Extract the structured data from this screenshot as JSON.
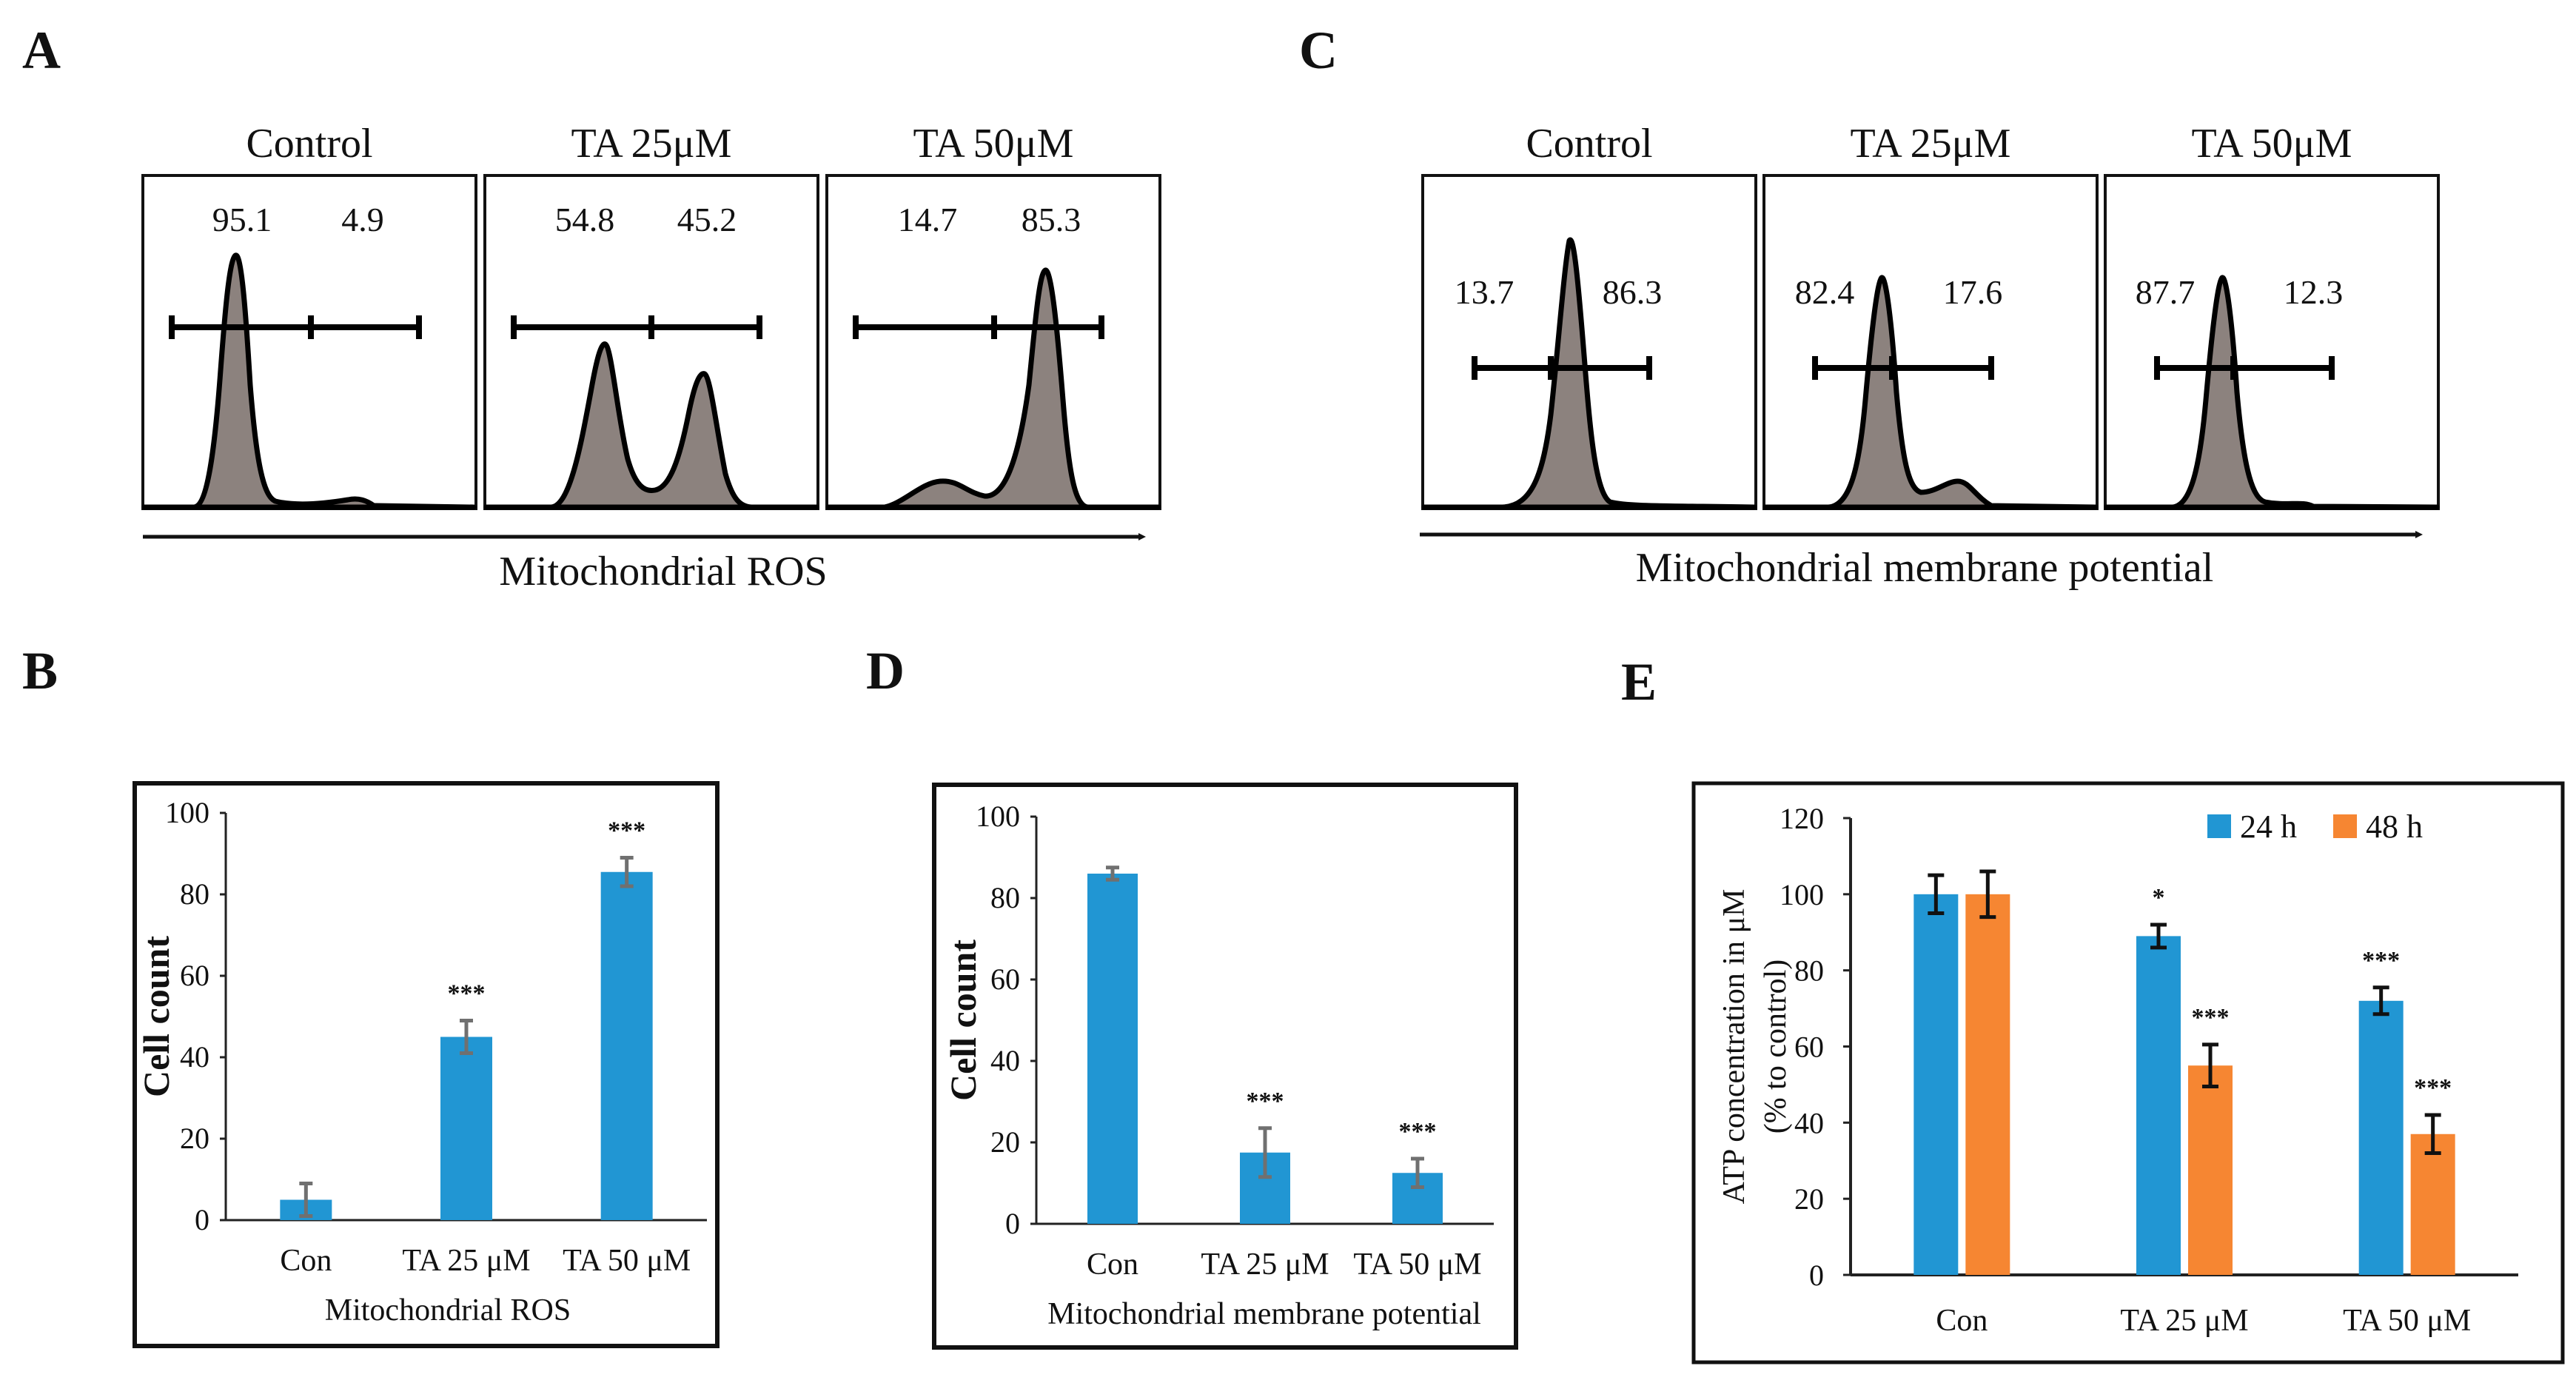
{
  "panels": {
    "A": {
      "label": "A",
      "conditions": [
        "Control",
        "TA 25μM",
        "TA 50μM"
      ],
      "percentages": [
        [
          "95.1",
          "4.9"
        ],
        [
          "54.8",
          "45.2"
        ],
        [
          "14.7",
          "85.3"
        ]
      ],
      "axis_label": "Mitochondrial ROS"
    },
    "C": {
      "label": "C",
      "conditions": [
        "Control",
        "TA 25μM",
        "TA 50μM"
      ],
      "percentages": [
        [
          "13.7",
          "86.3"
        ],
        [
          "82.4",
          "17.6"
        ],
        [
          "87.7",
          "12.3"
        ]
      ],
      "axis_label": "Mitochondrial membrane potential"
    },
    "B": {
      "label": "B"
    },
    "D": {
      "label": "D"
    },
    "E": {
      "label": "E"
    }
  },
  "colors": {
    "histogram_fill": "#8c827e",
    "bar_blue": "#2196d3",
    "bar_orange": "#f68632",
    "error_bar_gray": "#707070"
  },
  "chart_data": [
    {
      "id": "B",
      "type": "bar",
      "categories": [
        "Con",
        "TA 25 μM",
        "TA 50 μM"
      ],
      "values": [
        5,
        45,
        85.5
      ],
      "errors": [
        4,
        4,
        3.5
      ],
      "significance": [
        "",
        "***",
        "***"
      ],
      "ylabel": "Cell count",
      "xlabel": "Mitochondrial  ROS",
      "ylim": [
        0,
        100
      ],
      "yticks": [
        0,
        20,
        40,
        60,
        80,
        100
      ]
    },
    {
      "id": "D",
      "type": "bar",
      "categories": [
        "Con",
        "TA 25 μM",
        "TA 50 μM"
      ],
      "values": [
        86,
        17.5,
        12.5
      ],
      "errors": [
        1.5,
        6,
        3.5
      ],
      "significance": [
        "",
        "***",
        "***"
      ],
      "ylabel": "Cell count",
      "xlabel": "Mitochondrial  membrane  potential",
      "ylim": [
        0,
        100
      ],
      "yticks": [
        0,
        20,
        40,
        60,
        80,
        100
      ]
    },
    {
      "id": "E",
      "type": "bar",
      "categories": [
        "Con",
        "TA 25  μM",
        "TA 50  μM"
      ],
      "series": [
        {
          "name": "24 h",
          "values": [
            100,
            89,
            72
          ],
          "errors": [
            5,
            3,
            3.5
          ],
          "significance": [
            "",
            "*",
            "***"
          ]
        },
        {
          "name": "48 h",
          "values": [
            100,
            55,
            37
          ],
          "errors": [
            6,
            5.5,
            5
          ],
          "significance": [
            "",
            "***",
            "***"
          ]
        }
      ],
      "ylabel_line1": "ATP concentration  in μM",
      "ylabel_line2": "(% to control)",
      "ylim": [
        0,
        120
      ],
      "yticks": [
        0,
        20,
        40,
        60,
        80,
        100,
        120
      ],
      "legend_position": "top-right"
    }
  ]
}
